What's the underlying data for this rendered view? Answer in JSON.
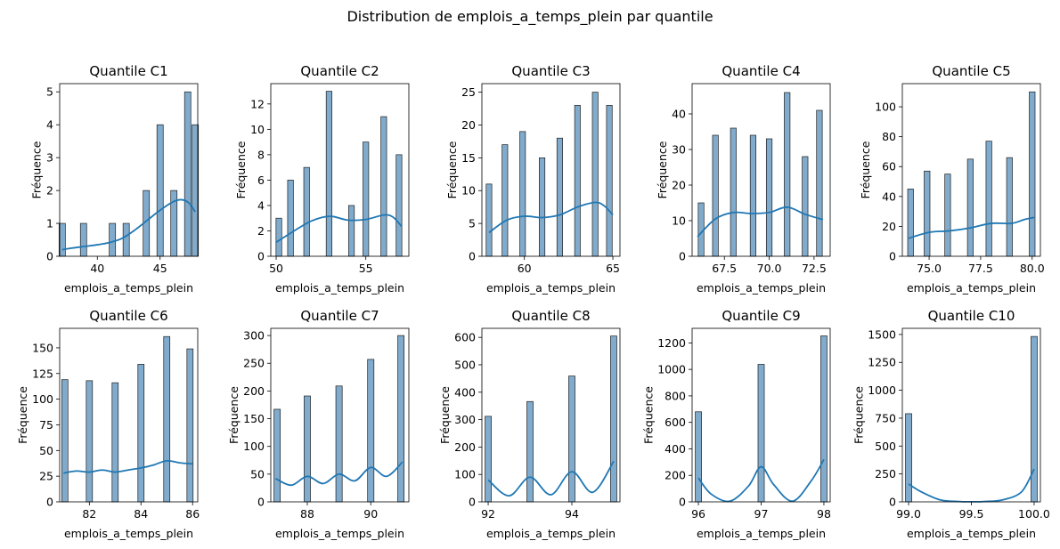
{
  "suptitle": "Distribution de emplois_a_temps_plein par quantile",
  "colors": {
    "bar": "#7aa7c9",
    "kde": "#1f77b4"
  },
  "chart_data": [
    {
      "type": "bar",
      "title": "Quantile C1",
      "xlabel": "emplois_a_temps_plein",
      "ylabel": "Fréquence",
      "xlim": [
        37,
        48
      ],
      "ylim": [
        0,
        5.25
      ],
      "bin_width": 0.5,
      "tick_decimals": 0,
      "xticks": [
        40,
        45
      ],
      "yticks": [
        0,
        1,
        2,
        3,
        4,
        5
      ],
      "bars": [
        [
          37.2,
          1
        ],
        [
          38.9,
          1
        ],
        [
          41.2,
          1
        ],
        [
          42.3,
          1
        ],
        [
          43.9,
          2
        ],
        [
          45.0,
          4
        ],
        [
          46.1,
          2
        ],
        [
          47.2,
          5
        ],
        [
          47.8,
          4
        ]
      ],
      "kde": [
        [
          37.2,
          0.2
        ],
        [
          38,
          0.25
        ],
        [
          39,
          0.3
        ],
        [
          40,
          0.35
        ],
        [
          41,
          0.42
        ],
        [
          42,
          0.55
        ],
        [
          43,
          0.8
        ],
        [
          44,
          1.1
        ],
        [
          45,
          1.4
        ],
        [
          46,
          1.65
        ],
        [
          46.7,
          1.72
        ],
        [
          47.3,
          1.62
        ],
        [
          47.8,
          1.35
        ]
      ]
    },
    {
      "type": "bar",
      "title": "Quantile C2",
      "xlabel": "emplois_a_temps_plein",
      "ylabel": "Fréquence",
      "xlim": [
        49.7,
        57.4
      ],
      "ylim": [
        0,
        13.6
      ],
      "bin_width": 0.32,
      "tick_decimals": 0,
      "xticks": [
        50,
        55
      ],
      "yticks": [
        0,
        2,
        4,
        6,
        8,
        10,
        12
      ],
      "bars": [
        [
          50.15,
          3
        ],
        [
          50.8,
          6
        ],
        [
          51.7,
          7
        ],
        [
          52.95,
          13
        ],
        [
          54.2,
          4
        ],
        [
          55.0,
          9
        ],
        [
          56.0,
          11
        ],
        [
          56.85,
          8
        ]
      ],
      "kde": [
        [
          50,
          1.1
        ],
        [
          51,
          2.0
        ],
        [
          52,
          2.8
        ],
        [
          53,
          3.15
        ],
        [
          54,
          2.85
        ],
        [
          55,
          2.9
        ],
        [
          56,
          3.25
        ],
        [
          56.5,
          3.1
        ],
        [
          57,
          2.35
        ]
      ]
    },
    {
      "type": "bar",
      "title": "Quantile C3",
      "xlabel": "emplois_a_temps_plein",
      "ylabel": "Fréquence",
      "xlim": [
        57.6,
        65.4
      ],
      "ylim": [
        0,
        26.3
      ],
      "bin_width": 0.32,
      "tick_decimals": 0,
      "xticks": [
        60,
        65
      ],
      "yticks": [
        0,
        5,
        10,
        15,
        20,
        25
      ],
      "bars": [
        [
          58.0,
          11
        ],
        [
          58.9,
          17
        ],
        [
          59.9,
          19
        ],
        [
          61.0,
          15
        ],
        [
          62.0,
          18
        ],
        [
          63.0,
          23
        ],
        [
          64.0,
          25
        ],
        [
          64.8,
          23
        ]
      ],
      "kde": [
        [
          58,
          3.6
        ],
        [
          59,
          5.5
        ],
        [
          60,
          6.1
        ],
        [
          61,
          5.9
        ],
        [
          62,
          6.3
        ],
        [
          63,
          7.5
        ],
        [
          64,
          8.2
        ],
        [
          64.5,
          7.7
        ],
        [
          65,
          6.3
        ]
      ]
    },
    {
      "type": "bar",
      "title": "Quantile C4",
      "xlabel": "emplois_a_temps_plein",
      "ylabel": "Fréquence",
      "xlim": [
        65.7,
        73.4
      ],
      "ylim": [
        0,
        48.5
      ],
      "bin_width": 0.32,
      "tick_decimals": 1,
      "xticks": [
        67.5,
        70.0,
        72.5
      ],
      "yticks": [
        0,
        10,
        20,
        30,
        40
      ],
      "bars": [
        [
          66.2,
          15
        ],
        [
          67.0,
          34
        ],
        [
          68.0,
          36
        ],
        [
          69.1,
          34
        ],
        [
          70.0,
          33
        ],
        [
          71.0,
          46
        ],
        [
          72.0,
          28
        ],
        [
          72.8,
          41
        ]
      ],
      "kde": [
        [
          66,
          5.5
        ],
        [
          67,
          10.5
        ],
        [
          68,
          12.3
        ],
        [
          69,
          12.0
        ],
        [
          70,
          12.3
        ],
        [
          71,
          13.8
        ],
        [
          72,
          11.8
        ],
        [
          73,
          10.3
        ]
      ]
    },
    {
      "type": "bar",
      "title": "Quantile C5",
      "xlabel": "emplois_a_temps_plein",
      "ylabel": "Fréquence",
      "xlim": [
        73.7,
        80.4
      ],
      "ylim": [
        0,
        115.5
      ],
      "bin_width": 0.28,
      "tick_decimals": 1,
      "xticks": [
        75.0,
        77.5,
        80.0
      ],
      "yticks": [
        0,
        20,
        40,
        60,
        80,
        100
      ],
      "bars": [
        [
          74.1,
          45
        ],
        [
          74.9,
          57
        ],
        [
          75.9,
          55
        ],
        [
          77.0,
          65
        ],
        [
          77.9,
          77
        ],
        [
          78.9,
          66
        ],
        [
          80.0,
          110
        ]
      ],
      "kde": [
        [
          74,
          12
        ],
        [
          75,
          16
        ],
        [
          76,
          17
        ],
        [
          77,
          19
        ],
        [
          78,
          22
        ],
        [
          79,
          22
        ],
        [
          79.6,
          24.5
        ],
        [
          80.1,
          26
        ]
      ]
    },
    {
      "type": "bar",
      "title": "Quantile C6",
      "xlabel": "emplois_a_temps_plein",
      "ylabel": "Fréquence",
      "xlim": [
        80.85,
        86.2
      ],
      "ylim": [
        0,
        169
      ],
      "bin_width": 0.24,
      "tick_decimals": 0,
      "xticks": [
        82,
        84,
        86
      ],
      "yticks": [
        0,
        25,
        50,
        75,
        100,
        125,
        150
      ],
      "bars": [
        [
          81.05,
          119
        ],
        [
          82.0,
          118
        ],
        [
          83.0,
          116
        ],
        [
          84.0,
          134
        ],
        [
          85.0,
          161
        ],
        [
          85.9,
          149
        ]
      ],
      "kde": [
        [
          81,
          28
        ],
        [
          81.5,
          30
        ],
        [
          82,
          29
        ],
        [
          82.5,
          31
        ],
        [
          83,
          29
        ],
        [
          83.5,
          31
        ],
        [
          84,
          33
        ],
        [
          84.5,
          36
        ],
        [
          85,
          40
        ],
        [
          85.5,
          38
        ],
        [
          86,
          37
        ]
      ]
    },
    {
      "type": "bar",
      "title": "Quantile C7",
      "xlabel": "emplois_a_temps_plein",
      "ylabel": "Fréquence",
      "xlim": [
        86.85,
        91.2
      ],
      "ylim": [
        0,
        313
      ],
      "bin_width": 0.2,
      "tick_decimals": 0,
      "xticks": [
        88,
        90
      ],
      "yticks": [
        0,
        50,
        100,
        150,
        200,
        250,
        300
      ],
      "bars": [
        [
          87.05,
          167
        ],
        [
          88.0,
          191
        ],
        [
          89.0,
          209
        ],
        [
          90.0,
          257
        ],
        [
          90.95,
          300
        ]
      ],
      "kde": [
        [
          87,
          42
        ],
        [
          87.5,
          30
        ],
        [
          88,
          46
        ],
        [
          88.5,
          33
        ],
        [
          89,
          50
        ],
        [
          89.5,
          38
        ],
        [
          90,
          62
        ],
        [
          90.5,
          46
        ],
        [
          91,
          72
        ]
      ]
    },
    {
      "type": "bar",
      "title": "Quantile C8",
      "xlabel": "emplois_a_temps_plein",
      "ylabel": "Fréquence",
      "xlim": [
        91.85,
        95.15
      ],
      "ylim": [
        0,
        633
      ],
      "bin_width": 0.15,
      "tick_decimals": 0,
      "xticks": [
        92,
        94
      ],
      "yticks": [
        0,
        100,
        200,
        300,
        400,
        500,
        600
      ],
      "bars": [
        [
          92.0,
          312
        ],
        [
          93.0,
          366
        ],
        [
          94.0,
          459
        ],
        [
          95.0,
          605
        ]
      ],
      "kde": [
        [
          92,
          80
        ],
        [
          92.5,
          22
        ],
        [
          93,
          90
        ],
        [
          93.5,
          26
        ],
        [
          94,
          110
        ],
        [
          94.5,
          35
        ],
        [
          95,
          148
        ]
      ]
    },
    {
      "type": "bar",
      "title": "Quantile C9",
      "xlabel": "emplois_a_temps_plein",
      "ylabel": "Fréquence",
      "xlim": [
        95.9,
        98.1
      ],
      "ylim": [
        0,
        1310
      ],
      "bin_width": 0.1,
      "tick_decimals": 0,
      "xticks": [
        96,
        97,
        98
      ],
      "yticks": [
        0,
        200,
        400,
        600,
        800,
        1000,
        1200
      ],
      "bars": [
        [
          96.0,
          680
        ],
        [
          97.0,
          1038
        ],
        [
          98.0,
          1253
        ]
      ],
      "kde": [
        [
          96,
          180
        ],
        [
          96.2,
          60
        ],
        [
          96.5,
          5
        ],
        [
          96.8,
          120
        ],
        [
          97,
          265
        ],
        [
          97.2,
          130
        ],
        [
          97.5,
          5
        ],
        [
          97.8,
          160
        ],
        [
          98,
          320
        ]
      ]
    },
    {
      "type": "bar",
      "title": "Quantile C10",
      "xlabel": "emplois_a_temps_plein",
      "ylabel": "Fréquence",
      "xlim": [
        98.95,
        100.05
      ],
      "ylim": [
        0,
        1555
      ],
      "bin_width": 0.05,
      "tick_decimals": 1,
      "xticks": [
        99.0,
        99.5,
        100.0
      ],
      "yticks": [
        0,
        250,
        500,
        750,
        1000,
        1250,
        1500
      ],
      "bars": [
        [
          99.0,
          790
        ],
        [
          100.0,
          1482
        ]
      ],
      "kde": [
        [
          99.0,
          160
        ],
        [
          99.1,
          90
        ],
        [
          99.25,
          18
        ],
        [
          99.4,
          3
        ],
        [
          99.5,
          1
        ],
        [
          99.6,
          3
        ],
        [
          99.75,
          18
        ],
        [
          99.9,
          90
        ],
        [
          100.0,
          295
        ]
      ]
    }
  ]
}
